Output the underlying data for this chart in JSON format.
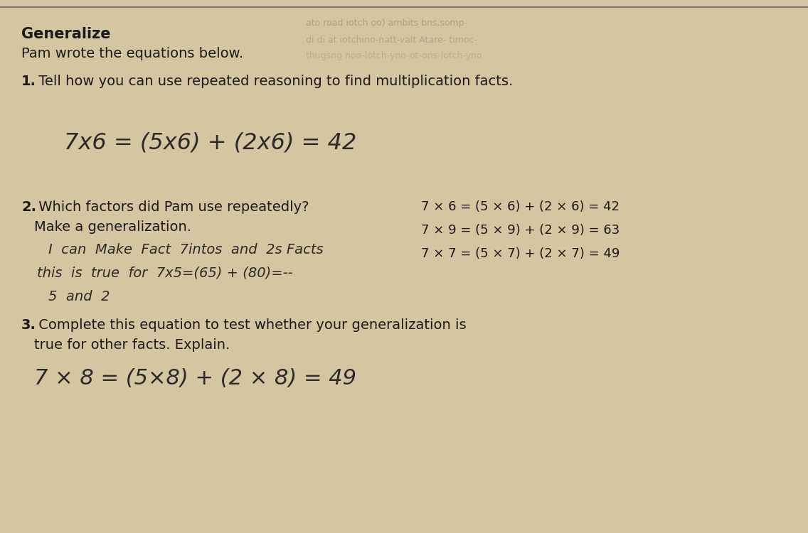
{
  "background_color": "#d4c6a0",
  "title_bold": "Generalize",
  "subtitle": "Pam wrote the equations below.",
  "q1_label": "1.",
  "q1_text": " Tell how you can use repeated reasoning to find multiplication facts.",
  "handwritten_line1": "7x6 = (5x6) + (2x6) = 42",
  "q2_label": "2.",
  "q2_text1": " Which factors did Pam use repeatedly?",
  "q2_text2": "Make a generalization.",
  "handwritten_answer1": "I  can  Make  Fact  7intos  and  2s Facts",
  "handwritten_answer2": "this  is  true  for  7x5=(65) + (80)=--",
  "handwritten_answer3": "5  and  2",
  "eq1": "7 × 6 = (5 × 6) + (2 × 6) = 42",
  "eq2": "7 × 9 = (5 × 9) + (2 × 9) = 63",
  "eq3": "7 × 7 = (5 × 7) + (2 × 7) = 49",
  "q3_label": "3.",
  "q3_text1": " Complete this equation to test whether your generalization is",
  "q3_text2": "true for other facts. Explain.",
  "handwritten_eq": "7 × 8 = (5×8) + (2 × 8) = 49",
  "faded1": "ato road iotch oo) ambits bns,somp-",
  "faded2": "di di at iotchino-natt-valt Atare- timoc-",
  "faded3": "thugsng noo-lotch-yno-ot-ons-lotch-yno",
  "font_color": "#1a1a1a",
  "handwriting_color": "#2a2a2a",
  "faded_text_color": "#8a8070"
}
